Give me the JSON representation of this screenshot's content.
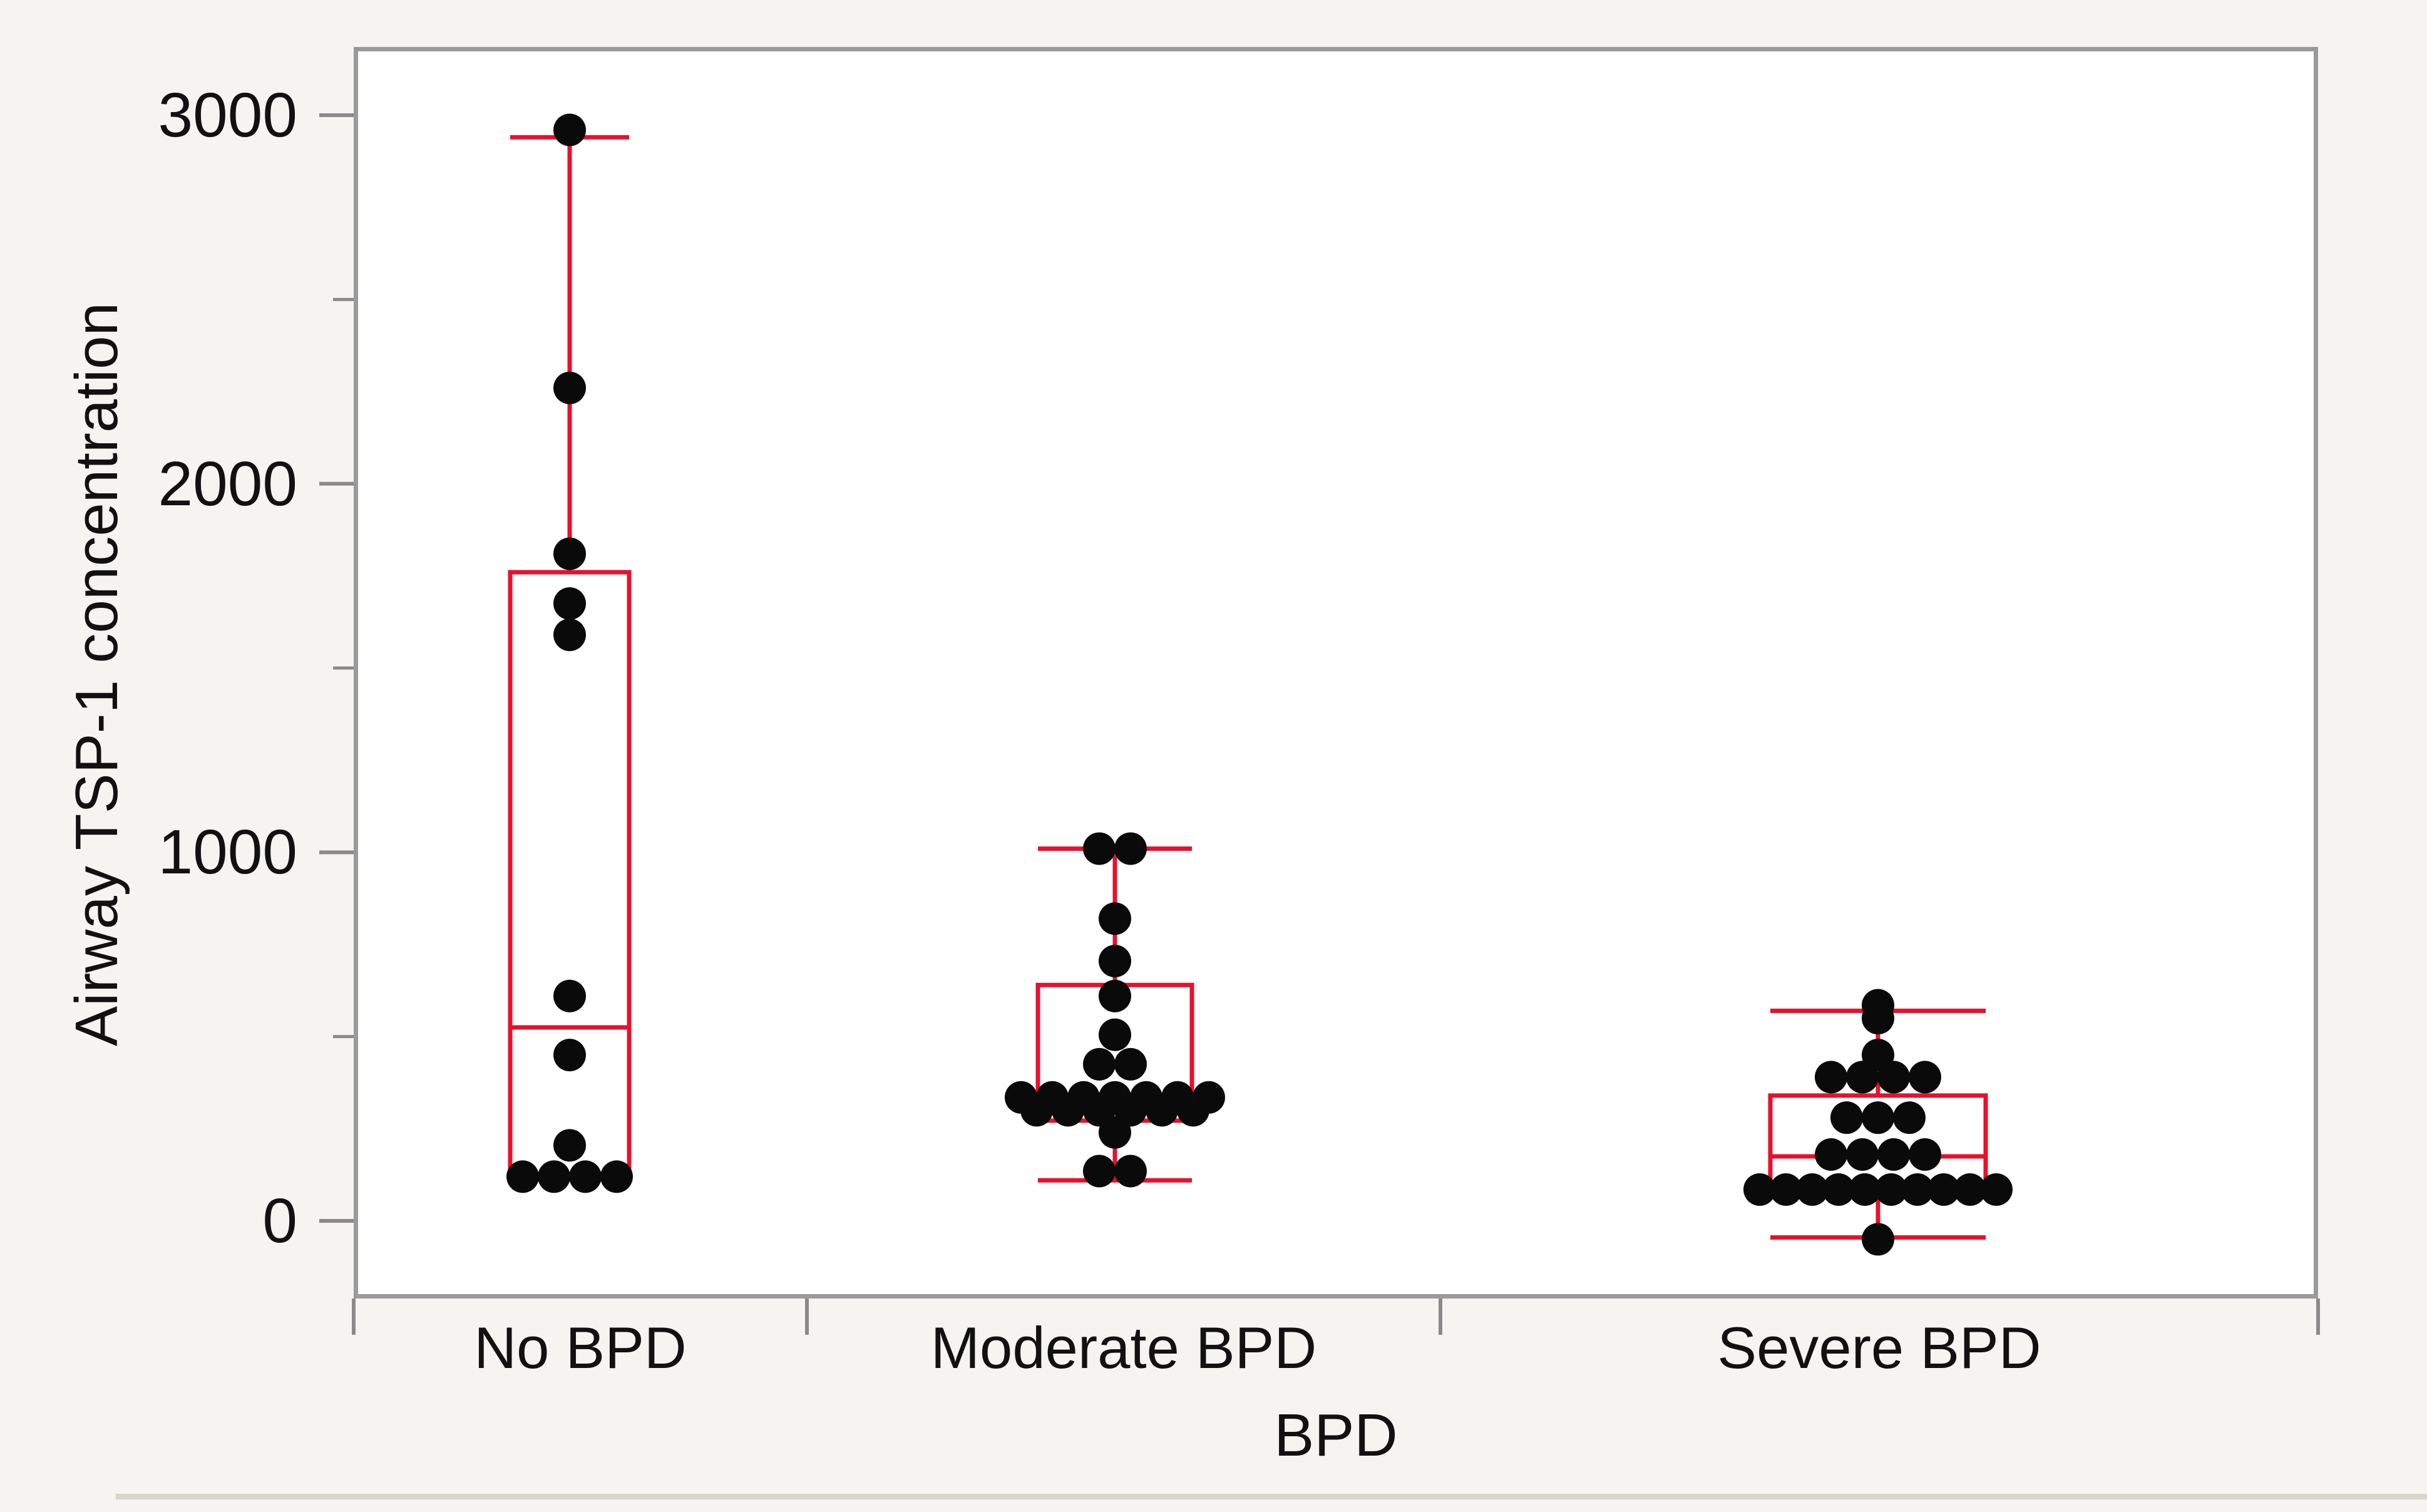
{
  "chart_data": {
    "type": "box-with-points",
    "title": "",
    "xlabel": "BPD",
    "ylabel": "Airway TSP-1 concentration",
    "y_axis": {
      "min": -210,
      "max": 3190,
      "major_ticks": [
        0,
        1000,
        2000,
        3000
      ],
      "tick_labels": [
        "0",
        "1000",
        "2000",
        "3000"
      ],
      "minor_ticks": [
        500,
        1500,
        2500
      ],
      "grid": "off"
    },
    "legend": "none",
    "categories": [
      {
        "label": "No BPD",
        "box": {
          "q1": 115,
          "median": 525,
          "q3": 1760,
          "whisker_low": 115,
          "whisker_high": 2940
        },
        "points": [
          2960,
          2260,
          1810,
          1675,
          1590,
          610,
          450,
          205,
          120,
          120,
          120,
          120
        ]
      },
      {
        "label": "Moderate BPD",
        "box": {
          "q1": 272,
          "median": 318,
          "q3": 640,
          "whisker_low": 110,
          "whisker_high": 1010
        },
        "points": [
          1010,
          1010,
          820,
          705,
          610,
          505,
          425,
          425,
          335,
          335,
          335,
          335,
          335,
          335,
          335,
          300,
          300,
          300,
          300,
          300,
          300,
          240,
          135,
          135
        ]
      },
      {
        "label": "Severe BPD",
        "box": {
          "q1": 65,
          "median": 175,
          "q3": 340,
          "whisker_low": -45,
          "whisker_high": 570
        },
        "points": [
          585,
          550,
          450,
          390,
          390,
          390,
          390,
          280,
          280,
          280,
          180,
          180,
          180,
          180,
          85,
          85,
          85,
          85,
          85,
          85,
          85,
          85,
          85,
          85,
          -50
        ]
      }
    ],
    "colors": {
      "box_outline": "#e8112d",
      "data_points": "#0a0a0a",
      "frame": "#9a9a9a",
      "tick_marks": "#8a8a8a",
      "text": "#111111",
      "plot_background": "#ffffff",
      "figure_background": "#f5f4f0",
      "bottom_divider": "#d5d5ca"
    }
  }
}
